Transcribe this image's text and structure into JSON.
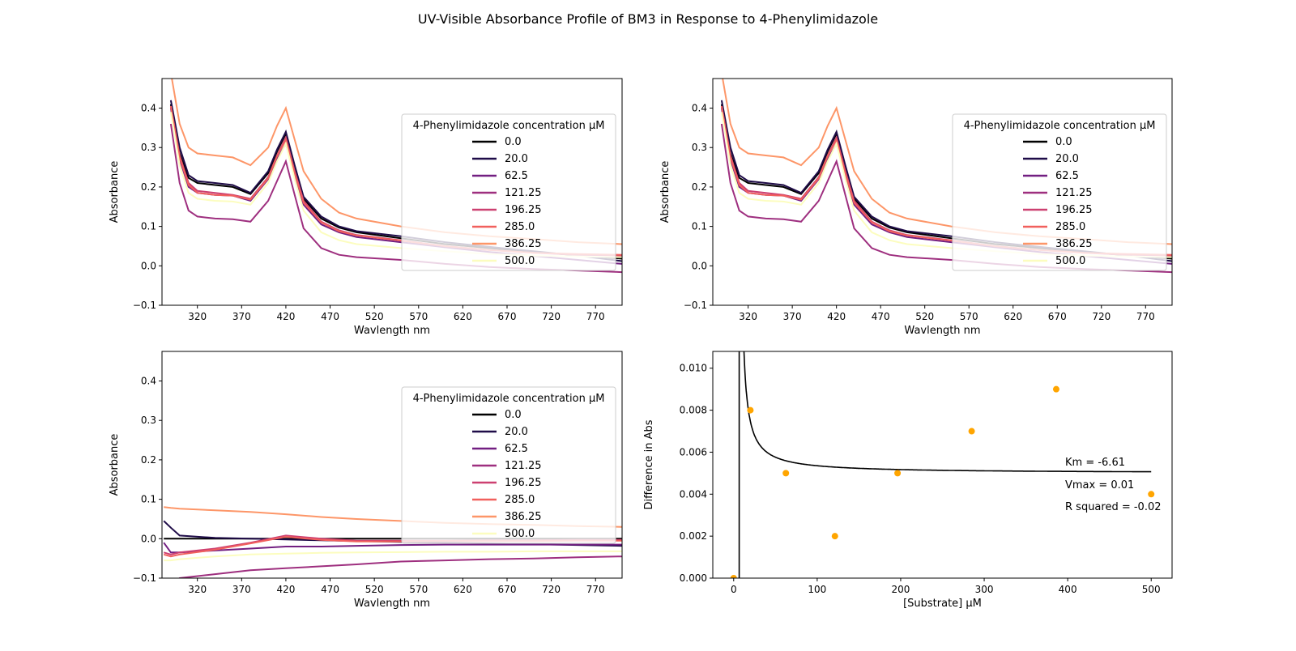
{
  "figure_title": "UV-Visible Absorbance Profile of BM3 in Response to 4-Phenylimidazole",
  "chart_data": [
    {
      "type": "line",
      "panel": "top-left",
      "xlabel": "Wavlength nm",
      "ylabel": "Absorbance",
      "xlim": [
        280,
        800
      ],
      "ylim": [
        -0.1,
        0.475
      ],
      "xticks": [
        320,
        370,
        420,
        470,
        520,
        570,
        620,
        670,
        720,
        770
      ],
      "yticks": [
        -0.1,
        0.0,
        0.1,
        0.2,
        0.3,
        0.4
      ],
      "legend_title": "4-Phenylimidazole concentration µM",
      "legend_position": "right",
      "x": [
        290,
        300,
        310,
        320,
        340,
        360,
        380,
        400,
        410,
        420,
        430,
        440,
        460,
        480,
        500,
        550,
        600,
        650,
        700,
        750,
        800
      ],
      "series": [
        {
          "name": "0.0",
          "color": "#000000",
          "values": [
            0.41,
            0.285,
            0.223,
            0.21,
            0.205,
            0.2,
            0.182,
            0.235,
            0.29,
            0.335,
            0.25,
            0.17,
            0.12,
            0.097,
            0.085,
            0.07,
            0.055,
            0.045,
            0.035,
            0.027,
            0.018
          ]
        },
        {
          "name": "20.0",
          "color": "#1f0c48",
          "values": [
            0.42,
            0.3,
            0.23,
            0.215,
            0.21,
            0.205,
            0.185,
            0.24,
            0.295,
            0.34,
            0.255,
            0.175,
            0.125,
            0.1,
            0.088,
            0.075,
            0.06,
            0.048,
            0.037,
            0.026,
            0.012
          ]
        },
        {
          "name": "62.5",
          "color": "#721f81",
          "values": [
            0.4,
            0.27,
            0.2,
            0.185,
            0.18,
            0.178,
            0.165,
            0.22,
            0.27,
            0.31,
            0.23,
            0.155,
            0.105,
            0.085,
            0.073,
            0.06,
            0.047,
            0.035,
            0.025,
            0.015,
            0.005
          ]
        },
        {
          "name": "121.25",
          "color": "#9e2f7f",
          "values": [
            0.36,
            0.21,
            0.14,
            0.125,
            0.12,
            0.118,
            0.112,
            0.165,
            0.215,
            0.265,
            0.18,
            0.095,
            0.045,
            0.028,
            0.022,
            0.015,
            0.005,
            -0.003,
            -0.008,
            -0.012,
            -0.016
          ]
        },
        {
          "name": "196.25",
          "color": "#cd4071",
          "values": [
            0.405,
            0.28,
            0.21,
            0.19,
            0.185,
            0.18,
            0.17,
            0.225,
            0.28,
            0.325,
            0.24,
            0.165,
            0.112,
            0.09,
            0.078,
            0.065,
            0.05,
            0.04,
            0.033,
            0.028,
            0.025
          ]
        },
        {
          "name": "285.0",
          "color": "#f1605d",
          "values": [
            0.405,
            0.275,
            0.205,
            0.185,
            0.18,
            0.178,
            0.168,
            0.222,
            0.278,
            0.32,
            0.235,
            0.16,
            0.11,
            0.088,
            0.077,
            0.064,
            0.05,
            0.04,
            0.033,
            0.03,
            0.028
          ]
        },
        {
          "name": "386.25",
          "color": "#fd9668",
          "values": [
            0.49,
            0.36,
            0.3,
            0.285,
            0.28,
            0.275,
            0.255,
            0.3,
            0.355,
            0.4,
            0.32,
            0.24,
            0.17,
            0.135,
            0.12,
            0.1,
            0.085,
            0.075,
            0.068,
            0.06,
            0.055
          ]
        },
        {
          "name": "500.0",
          "color": "#fcfdbf",
          "values": [
            0.39,
            0.255,
            0.185,
            0.17,
            0.165,
            0.163,
            0.155,
            0.21,
            0.265,
            0.31,
            0.22,
            0.14,
            0.085,
            0.065,
            0.055,
            0.045,
            0.037,
            0.03,
            0.026,
            0.024,
            0.022
          ]
        }
      ]
    },
    {
      "type": "line",
      "panel": "top-right",
      "xlabel": "Wavlength nm",
      "ylabel": "Absorbance",
      "xlim": [
        280,
        800
      ],
      "ylim": [
        -0.1,
        0.475
      ],
      "xticks": [
        320,
        370,
        420,
        470,
        520,
        570,
        620,
        670,
        720,
        770
      ],
      "yticks": [
        -0.1,
        0.0,
        0.1,
        0.2,
        0.3,
        0.4
      ],
      "legend_title": "4-Phenylimidazole concentration µM",
      "legend_position": "right",
      "x": [
        290,
        300,
        310,
        320,
        340,
        360,
        380,
        400,
        410,
        420,
        430,
        440,
        460,
        480,
        500,
        550,
        600,
        650,
        700,
        750,
        800
      ],
      "series": [
        {
          "name": "0.0",
          "color": "#000000",
          "values": [
            0.41,
            0.285,
            0.223,
            0.21,
            0.205,
            0.2,
            0.182,
            0.235,
            0.29,
            0.335,
            0.25,
            0.17,
            0.12,
            0.097,
            0.085,
            0.07,
            0.055,
            0.045,
            0.035,
            0.027,
            0.018
          ]
        },
        {
          "name": "20.0",
          "color": "#1f0c48",
          "values": [
            0.42,
            0.3,
            0.23,
            0.215,
            0.21,
            0.205,
            0.185,
            0.24,
            0.295,
            0.34,
            0.255,
            0.175,
            0.125,
            0.1,
            0.088,
            0.075,
            0.06,
            0.048,
            0.037,
            0.026,
            0.012
          ]
        },
        {
          "name": "62.5",
          "color": "#721f81",
          "values": [
            0.4,
            0.27,
            0.2,
            0.185,
            0.18,
            0.178,
            0.165,
            0.22,
            0.27,
            0.31,
            0.23,
            0.155,
            0.105,
            0.085,
            0.073,
            0.06,
            0.047,
            0.035,
            0.025,
            0.015,
            0.005
          ]
        },
        {
          "name": "121.25",
          "color": "#9e2f7f",
          "values": [
            0.36,
            0.21,
            0.14,
            0.125,
            0.12,
            0.118,
            0.112,
            0.165,
            0.215,
            0.265,
            0.18,
            0.095,
            0.045,
            0.028,
            0.022,
            0.015,
            0.005,
            -0.003,
            -0.008,
            -0.012,
            -0.016
          ]
        },
        {
          "name": "196.25",
          "color": "#cd4071",
          "values": [
            0.405,
            0.28,
            0.21,
            0.19,
            0.185,
            0.18,
            0.17,
            0.225,
            0.28,
            0.325,
            0.24,
            0.165,
            0.112,
            0.09,
            0.078,
            0.065,
            0.05,
            0.04,
            0.033,
            0.028,
            0.025
          ]
        },
        {
          "name": "285.0",
          "color": "#f1605d",
          "values": [
            0.405,
            0.275,
            0.205,
            0.185,
            0.18,
            0.178,
            0.168,
            0.222,
            0.278,
            0.32,
            0.235,
            0.16,
            0.11,
            0.088,
            0.077,
            0.064,
            0.05,
            0.04,
            0.033,
            0.03,
            0.028
          ]
        },
        {
          "name": "386.25",
          "color": "#fd9668",
          "values": [
            0.49,
            0.36,
            0.3,
            0.285,
            0.28,
            0.275,
            0.255,
            0.3,
            0.355,
            0.4,
            0.32,
            0.24,
            0.17,
            0.135,
            0.12,
            0.1,
            0.085,
            0.075,
            0.068,
            0.06,
            0.055
          ]
        },
        {
          "name": "500.0",
          "color": "#fcfdbf",
          "values": [
            0.39,
            0.255,
            0.185,
            0.17,
            0.165,
            0.163,
            0.155,
            0.21,
            0.265,
            0.31,
            0.22,
            0.14,
            0.085,
            0.065,
            0.055,
            0.045,
            0.037,
            0.03,
            0.026,
            0.024,
            0.022
          ]
        }
      ]
    },
    {
      "type": "line",
      "panel": "bottom-left",
      "xlabel": "Wavlength nm",
      "ylabel": "Absorbance",
      "xlim": [
        280,
        800
      ],
      "ylim": [
        -0.1,
        0.475
      ],
      "xticks": [
        320,
        370,
        420,
        470,
        520,
        570,
        620,
        670,
        720,
        770
      ],
      "yticks": [
        -0.1,
        0.0,
        0.1,
        0.2,
        0.3,
        0.4
      ],
      "legend_title": "4-Phenylimidazole concentration µM",
      "legend_position": "right",
      "x": [
        282,
        290,
        300,
        340,
        380,
        420,
        460,
        500,
        550,
        600,
        650,
        700,
        750,
        800
      ],
      "series": [
        {
          "name": "0.0",
          "color": "#000000",
          "values": [
            0.0,
            0.0,
            0.0,
            0.0,
            0.0,
            0.0,
            0.0,
            0.0,
            0.0,
            0.0,
            0.0,
            0.0,
            0.0,
            0.0
          ]
        },
        {
          "name": "20.0",
          "color": "#1f0c48",
          "values": [
            0.045,
            0.028,
            0.008,
            0.002,
            0.0,
            -0.002,
            -0.004,
            -0.006,
            -0.008,
            -0.01,
            -0.012,
            -0.014,
            -0.016,
            -0.018
          ]
        },
        {
          "name": "62.5",
          "color": "#721f81",
          "values": [
            -0.01,
            -0.035,
            -0.035,
            -0.03,
            -0.025,
            -0.02,
            -0.02,
            -0.018,
            -0.016,
            -0.015,
            -0.015,
            -0.015,
            -0.015,
            -0.015
          ]
        },
        {
          "name": "121.25",
          "color": "#9e2f7f",
          "values": [
            -0.15,
            -0.12,
            -0.1,
            -0.09,
            -0.08,
            -0.075,
            -0.07,
            -0.065,
            -0.058,
            -0.055,
            -0.052,
            -0.05,
            -0.047,
            -0.045
          ]
        },
        {
          "name": "196.25",
          "color": "#cd4071",
          "values": [
            -0.035,
            -0.04,
            -0.035,
            -0.025,
            -0.01,
            0.008,
            0.0,
            -0.005,
            -0.005,
            -0.005,
            -0.004,
            -0.004,
            -0.003,
            -0.003
          ]
        },
        {
          "name": "285.0",
          "color": "#f1605d",
          "values": [
            -0.04,
            -0.045,
            -0.04,
            -0.028,
            -0.012,
            0.005,
            -0.003,
            -0.007,
            -0.007,
            -0.006,
            -0.006,
            -0.006,
            -0.005,
            -0.005
          ]
        },
        {
          "name": "386.25",
          "color": "#fd9668",
          "values": [
            0.08,
            0.078,
            0.076,
            0.072,
            0.068,
            0.062,
            0.055,
            0.05,
            0.045,
            0.04,
            0.037,
            0.035,
            0.032,
            0.03
          ]
        },
        {
          "name": "500.0",
          "color": "#fcfdbf",
          "values": [
            -0.055,
            -0.055,
            -0.052,
            -0.045,
            -0.04,
            -0.038,
            -0.036,
            -0.035,
            -0.034,
            -0.033,
            -0.033,
            -0.032,
            -0.032,
            -0.032
          ]
        }
      ]
    },
    {
      "type": "scatter",
      "panel": "bottom-right",
      "xlabel": "[Substrate] µM",
      "ylabel": "Difference in Abs",
      "xlim": [
        -25,
        525
      ],
      "ylim": [
        0,
        0.0108
      ],
      "xticks": [
        0,
        100,
        200,
        300,
        400,
        500
      ],
      "yticks": [
        0.0,
        0.002,
        0.004,
        0.006,
        0.008,
        0.01
      ],
      "x": [
        0.0,
        20.0,
        62.5,
        121.25,
        196.25,
        285.0,
        386.25,
        500.0
      ],
      "values": [
        0.0,
        0.008,
        0.005,
        0.002,
        0.005,
        0.007,
        0.009,
        0.004
      ],
      "point_color": "#ffa500",
      "fit": {
        "type": "michaelis-menten",
        "km": -6.61,
        "vmax": 0.005,
        "color": "#000000"
      },
      "annotations": [
        "Km = -6.61",
        "Vmax = 0.01",
        "R squared = -0.02"
      ]
    }
  ]
}
